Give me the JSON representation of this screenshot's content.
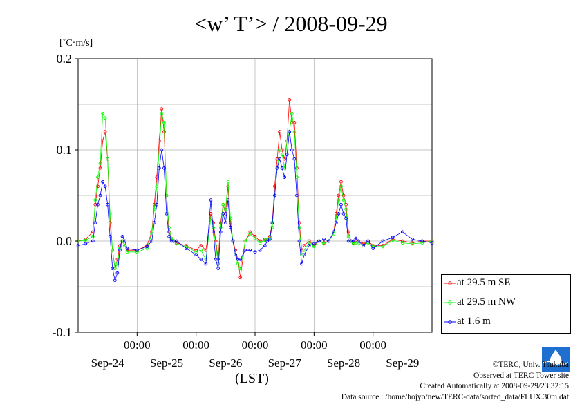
{
  "chart_data": {
    "type": "line",
    "title": "<w’ T’> / 2008-09-29",
    "ylabel": "[˚C·m/s]",
    "xlabel": "(LST)",
    "ylim": [
      -0.1,
      0.2
    ],
    "yticks": [
      "0.2",
      "0.1",
      "0.0",
      "-0.1"
    ],
    "ytick_values": [
      0.2,
      0.1,
      0.0,
      -0.1
    ],
    "x_hour_range": [
      0,
      144
    ],
    "xtick_time_label": "00:00",
    "xtick_hours": [
      24,
      48,
      72,
      96,
      120
    ],
    "xtick_dates": [
      "Sep-24",
      "Sep-25",
      "Sep-26",
      "Sep-27",
      "Sep-28",
      "Sep-29"
    ],
    "xtick_date_hours": [
      12,
      36,
      60,
      84,
      108,
      132
    ],
    "grid": true,
    "legend_position": "bottom-right",
    "series": [
      {
        "name": "at 29.5 m SE",
        "color": "#ff0000",
        "x": [
          0,
          3,
          6,
          7,
          8,
          9,
          10,
          11,
          12,
          13,
          14,
          15,
          16,
          17,
          18,
          19,
          20,
          24,
          28,
          30,
          31,
          32,
          33,
          34,
          35,
          36,
          37,
          38,
          39,
          40,
          44,
          48,
          50,
          52,
          54,
          55,
          56,
          57,
          58,
          59,
          60,
          61,
          62,
          63,
          64,
          65,
          66,
          68,
          70,
          72,
          74,
          76,
          77,
          78,
          79,
          80,
          81,
          82,
          83,
          84,
          85,
          86,
          87,
          88,
          89,
          90,
          91,
          92,
          94,
          96,
          98,
          100,
          102,
          104,
          105,
          106,
          107,
          108,
          109,
          110,
          111,
          112,
          113,
          114,
          116,
          118,
          120,
          124,
          128,
          132,
          136,
          140,
          144
        ],
        "values": [
          0.0,
          0.002,
          0.01,
          0.04,
          0.06,
          0.08,
          0.11,
          0.12,
          0.09,
          0.02,
          -0.01,
          -0.03,
          -0.02,
          -0.005,
          0.0,
          -0.005,
          -0.01,
          -0.01,
          -0.005,
          0.01,
          0.04,
          0.07,
          0.11,
          0.145,
          0.12,
          0.05,
          0.01,
          0.002,
          0.0,
          -0.002,
          -0.005,
          -0.01,
          -0.005,
          -0.01,
          0.03,
          0.02,
          0.0,
          -0.02,
          0.02,
          0.04,
          0.03,
          0.06,
          0.02,
          0.0,
          -0.01,
          -0.02,
          -0.04,
          0.0,
          0.01,
          0.005,
          0.0,
          0.002,
          0.002,
          0.005,
          0.02,
          0.06,
          0.09,
          0.12,
          0.1,
          0.09,
          0.11,
          0.155,
          0.13,
          0.13,
          0.08,
          0.02,
          -0.01,
          -0.005,
          0.0,
          -0.005,
          0.0,
          -0.002,
          0.0,
          0.01,
          0.03,
          0.05,
          0.065,
          0.05,
          0.04,
          0.01,
          0.0,
          -0.002,
          0.0,
          0.0,
          -0.003,
          0.0,
          -0.005,
          -0.005,
          0.002,
          0.0,
          -0.002,
          0.0,
          0.0
        ]
      },
      {
        "name": "at 29.5 m NW",
        "color": "#00ff00",
        "x": [
          0,
          3,
          6,
          7,
          8,
          9,
          10,
          11,
          12,
          13,
          14,
          15,
          16,
          17,
          18,
          19,
          20,
          24,
          28,
          30,
          31,
          32,
          33,
          34,
          35,
          36,
          37,
          38,
          39,
          40,
          44,
          48,
          50,
          52,
          54,
          55,
          56,
          57,
          58,
          59,
          60,
          61,
          62,
          63,
          64,
          65,
          66,
          68,
          70,
          72,
          74,
          76,
          77,
          78,
          79,
          80,
          81,
          82,
          83,
          84,
          85,
          86,
          87,
          88,
          89,
          90,
          91,
          92,
          94,
          96,
          98,
          100,
          102,
          104,
          105,
          106,
          107,
          108,
          109,
          110,
          111,
          112,
          113,
          114,
          116,
          118,
          120,
          124,
          128,
          132,
          136,
          140,
          144
        ],
        "values": [
          0.0,
          0.001,
          0.005,
          0.045,
          0.07,
          0.085,
          0.14,
          0.135,
          0.09,
          0.03,
          -0.01,
          -0.03,
          -0.025,
          -0.008,
          0.0,
          -0.005,
          -0.012,
          -0.012,
          -0.008,
          0.008,
          0.035,
          0.06,
          0.1,
          0.14,
          0.13,
          0.05,
          0.015,
          0.003,
          0.0,
          -0.003,
          -0.006,
          -0.012,
          -0.01,
          -0.02,
          0.025,
          0.015,
          -0.005,
          -0.025,
          0.015,
          0.04,
          0.035,
          0.065,
          0.025,
          0.0,
          -0.015,
          -0.025,
          -0.03,
          0.0,
          0.008,
          0.003,
          -0.002,
          0.001,
          0.002,
          0.003,
          0.015,
          0.05,
          0.08,
          0.1,
          0.095,
          0.08,
          0.11,
          0.12,
          0.14,
          0.12,
          0.07,
          0.015,
          -0.015,
          -0.01,
          -0.002,
          -0.006,
          0.0,
          -0.003,
          0.0,
          0.008,
          0.025,
          0.045,
          0.06,
          0.045,
          0.035,
          0.005,
          0.0,
          -0.003,
          -0.002,
          -0.003,
          -0.005,
          -0.002,
          -0.006,
          -0.006,
          0.001,
          -0.002,
          -0.003,
          -0.002,
          0.0
        ]
      },
      {
        "name": "at 1.6 m",
        "color": "#0000ff",
        "x": [
          0,
          3,
          6,
          7,
          8,
          9,
          10,
          11,
          12,
          13,
          14,
          15,
          16,
          17,
          18,
          19,
          20,
          24,
          28,
          30,
          31,
          32,
          33,
          34,
          35,
          36,
          37,
          38,
          39,
          40,
          44,
          48,
          50,
          52,
          54,
          55,
          56,
          57,
          58,
          59,
          60,
          61,
          62,
          63,
          64,
          65,
          66,
          68,
          70,
          72,
          74,
          76,
          77,
          78,
          79,
          80,
          81,
          82,
          83,
          84,
          85,
          86,
          87,
          88,
          89,
          90,
          91,
          92,
          94,
          96,
          98,
          100,
          102,
          104,
          105,
          106,
          107,
          108,
          109,
          110,
          111,
          112,
          113,
          114,
          116,
          118,
          120,
          124,
          128,
          132,
          136,
          140,
          144
        ],
        "values": [
          -0.005,
          -0.003,
          0.0,
          0.02,
          0.04,
          0.05,
          0.065,
          0.06,
          0.04,
          0.005,
          -0.03,
          -0.043,
          -0.035,
          -0.01,
          0.005,
          0.0,
          -0.008,
          -0.01,
          -0.006,
          0.0,
          0.02,
          0.04,
          0.08,
          0.1,
          0.08,
          0.03,
          0.005,
          0.0,
          0.0,
          0.0,
          -0.008,
          -0.015,
          -0.02,
          -0.025,
          0.045,
          0.01,
          -0.02,
          -0.03,
          0.01,
          0.03,
          0.02,
          0.045,
          0.015,
          0.0,
          -0.015,
          -0.02,
          -0.02,
          -0.01,
          -0.01,
          -0.012,
          -0.01,
          -0.005,
          0.0,
          0.002,
          0.02,
          0.05,
          0.08,
          0.09,
          0.08,
          0.07,
          0.095,
          0.12,
          0.1,
          0.09,
          0.05,
          0.0,
          -0.025,
          -0.015,
          -0.005,
          -0.003,
          0.0,
          0.002,
          0.0,
          0.01,
          0.02,
          0.03,
          0.04,
          0.03,
          0.025,
          0.0,
          0.0,
          0.0,
          0.003,
          0.0,
          -0.005,
          0.0,
          -0.008,
          0.0,
          0.004,
          0.01,
          0.002,
          0.0,
          -0.002
        ]
      }
    ]
  },
  "credits": {
    "copyright": "©TERC, Univ. Tsukuba",
    "observed": "Observed at TERC Tower site",
    "created": "Created Automatically at 2008-09-29/23:32:15",
    "source": "Data source : /home/hojyo/new/TERC-data/sorted_data/FLUX.30m.dat"
  },
  "logo_text": "TERC"
}
